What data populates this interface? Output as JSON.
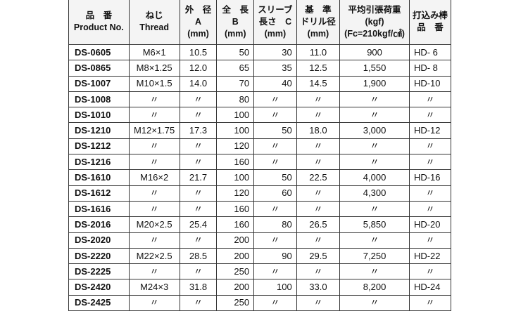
{
  "headers": [
    {
      "l1": "品　番",
      "l2": "Product No.",
      "l3": ""
    },
    {
      "l1": "ねじ",
      "l2": "Thread",
      "l3": ""
    },
    {
      "l1": "外　径",
      "l2": "A",
      "l3": "(mm)"
    },
    {
      "l1": "全　長",
      "l2": "B",
      "l3": "(mm)"
    },
    {
      "l1": "スリーブ",
      "l2": "長さ　C",
      "l3": "(mm)"
    },
    {
      "l1": "基　準",
      "l2": "ドリル径",
      "l3": "(mm)"
    },
    {
      "l1": "平均引張荷重",
      "l2": "(kgf)",
      "l3": "(Fc=210kgf/㎠)"
    },
    {
      "l1": "打込み棒",
      "l2": "品　番",
      "l3": ""
    }
  ],
  "rows": [
    [
      "DS-0605",
      "M6×1",
      "10.5",
      "50",
      "30",
      "11.0",
      "900",
      "HD- 6"
    ],
    [
      "DS-0865",
      "M8×1.25",
      "12.0",
      "65",
      "35",
      "12.5",
      "1,550",
      "HD- 8"
    ],
    [
      "DS-1007",
      "M10×1.5",
      "14.0",
      "70",
      "40",
      "14.5",
      "1,900",
      "HD-10"
    ],
    [
      "DS-1008",
      "〃",
      "〃",
      "80",
      "〃",
      "〃",
      "〃",
      "〃"
    ],
    [
      "DS-1010",
      "〃",
      "〃",
      "100",
      "〃",
      "〃",
      "〃",
      "〃"
    ],
    [
      "DS-1210",
      "M12×1.75",
      "17.3",
      "100",
      "50",
      "18.0",
      "3,000",
      "HD-12"
    ],
    [
      "DS-1212",
      "〃",
      "〃",
      "120",
      "〃",
      "〃",
      "〃",
      "〃"
    ],
    [
      "DS-1216",
      "〃",
      "〃",
      "160",
      "〃",
      "〃",
      "〃",
      "〃"
    ],
    [
      "DS-1610",
      "M16×2",
      "21.7",
      "100",
      "50",
      "22.5",
      "4,000",
      "HD-16"
    ],
    [
      "DS-1612",
      "〃",
      "〃",
      "120",
      "60",
      "〃",
      "4,300",
      "〃"
    ],
    [
      "DS-1616",
      "〃",
      "〃",
      "160",
      "〃",
      "〃",
      "〃",
      "〃"
    ],
    [
      "DS-2016",
      "M20×2.5",
      "25.4",
      "160",
      "80",
      "26.5",
      "5,850",
      "HD-20"
    ],
    [
      "DS-2020",
      "〃",
      "〃",
      "200",
      "〃",
      "〃",
      "〃",
      "〃"
    ],
    [
      "DS-2220",
      "M22×2.5",
      "28.5",
      "200",
      "90",
      "29.5",
      "7,250",
      "HD-22"
    ],
    [
      "DS-2225",
      "〃",
      "〃",
      "250",
      "〃",
      "〃",
      "〃",
      "〃"
    ],
    [
      "DS-2420",
      "M24×3",
      "31.8",
      "200",
      "100",
      "33.0",
      "8,200",
      "HD-24"
    ],
    [
      "DS-2425",
      "〃",
      "〃",
      "250",
      "〃",
      "〃",
      "〃",
      "〃"
    ]
  ]
}
